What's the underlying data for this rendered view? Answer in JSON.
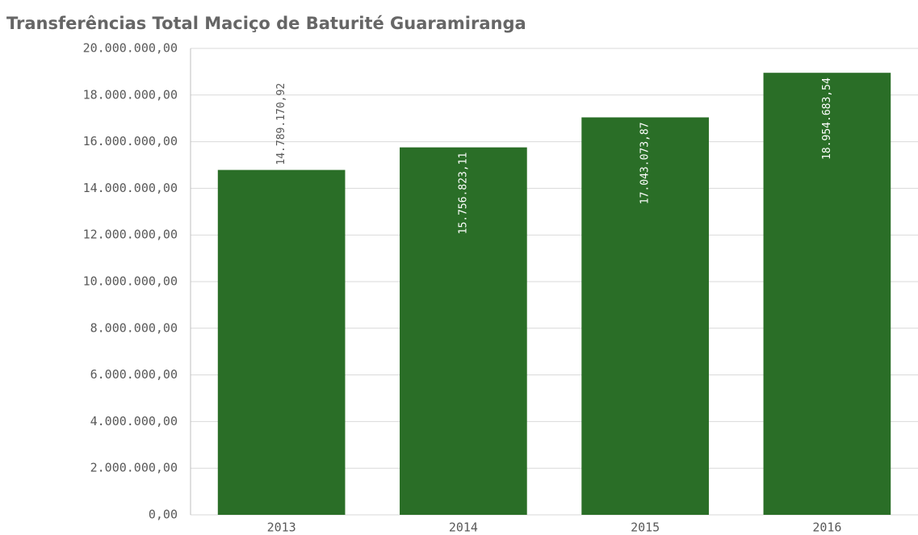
{
  "chart_data": {
    "type": "bar",
    "title": "Transferências Total Maciço de Baturité Guaramiranga",
    "categories": [
      "2013",
      "2014",
      "2015",
      "2016"
    ],
    "values": [
      14789170.92,
      15756823.11,
      17043073.87,
      18954683.54
    ],
    "value_labels": [
      "14.789.170,92",
      "15.756.823,11",
      "17.043.073,87",
      "18.954.683,54"
    ],
    "color": "#2a6e27",
    "ylim": [
      0,
      20000000
    ],
    "yticks": [
      {
        "value": 0,
        "label": "0,00"
      },
      {
        "value": 2000000,
        "label": "2.000.000,00"
      },
      {
        "value": 4000000,
        "label": "4.000.000,00"
      },
      {
        "value": 6000000,
        "label": "6.000.000,00"
      },
      {
        "value": 8000000,
        "label": "8.000.000,00"
      },
      {
        "value": 10000000,
        "label": "10.000.000,00"
      },
      {
        "value": 12000000,
        "label": "12.000.000,00"
      },
      {
        "value": 14000000,
        "label": "14.000.000,00"
      },
      {
        "value": 16000000,
        "label": "16.000.000,00"
      },
      {
        "value": 18000000,
        "label": "18.000.000,00"
      },
      {
        "value": 20000000,
        "label": "20.000.000,00"
      }
    ],
    "grid": true
  }
}
